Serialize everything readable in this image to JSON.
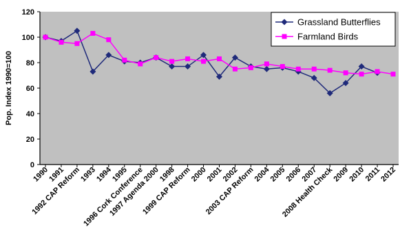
{
  "chart_data": {
    "type": "line",
    "ylabel": "Pop. Index 1990=100",
    "ylim": [
      0,
      120
    ],
    "yticks": [
      0,
      20,
      40,
      60,
      80,
      100,
      120
    ],
    "grid": false,
    "legend_position": "top-right",
    "categories": [
      "1990",
      "1991",
      "1992 CAP Reform",
      "1993",
      "1994",
      "1995",
      "1996 Cork Conference",
      "1997 Agenda 2000",
      "1998",
      "1999 CAP Reform",
      "2000",
      "2001",
      "2002",
      "2003 CAP Reform",
      "2004",
      "2005",
      "2006",
      "2007",
      "2008 Health Check",
      "2009",
      "2010",
      "2011",
      "2012"
    ],
    "x_tick_labels": [
      "1990",
      "1991",
      "1992 CAP Reform",
      "1993",
      "1994",
      "1995",
      "1996 Cork Conference",
      "1997 Agenda 2000",
      "1998",
      "1999 CAP Reform",
      "2000",
      "2001",
      "2002",
      "2003 CAP Reform",
      "2004",
      "2005",
      "2006",
      "2007",
      "2008 Health Check",
      "2009",
      "2010",
      "2011",
      "2012"
    ],
    "series": [
      {
        "name": "Grassland Butterflies",
        "color": "#1f2a7a",
        "marker": "diamond",
        "values": [
          100,
          97,
          105,
          73,
          86,
          81,
          80,
          84,
          77,
          77,
          86,
          69,
          84,
          77,
          75,
          76,
          73,
          68,
          56,
          64,
          77,
          72,
          null
        ]
      },
      {
        "name": "Farmland Birds",
        "color": "#ff00ff",
        "marker": "square",
        "values": [
          100,
          96,
          95,
          103,
          98,
          82,
          79,
          84,
          81,
          83,
          81,
          83,
          75,
          76,
          79,
          77,
          75,
          75,
          74,
          72,
          71,
          73,
          71
        ]
      }
    ]
  }
}
